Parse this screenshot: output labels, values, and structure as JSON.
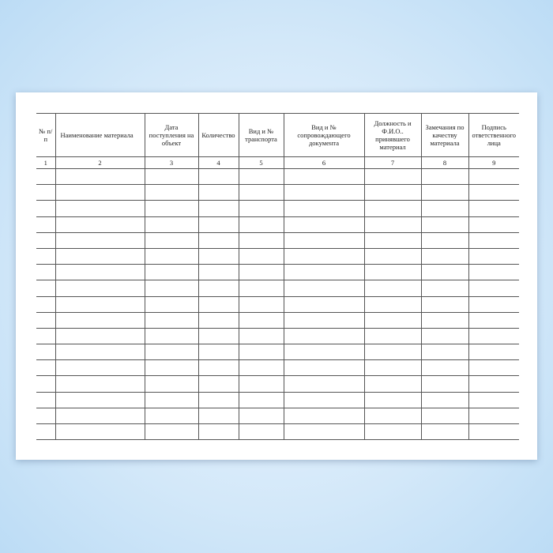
{
  "form": {
    "headers": [
      "№ п/п",
      "Наименование материала",
      "Дата поступления на объект",
      "Количество",
      "Вид и № транспорта",
      "Вид и № сопровождающего документа",
      "Должность и Ф.И.О.. принявшего материал",
      "Замечания по качеству материала",
      "Подпись ответственного лица"
    ],
    "column_numbers": [
      "1",
      "2",
      "3",
      "4",
      "5",
      "6",
      "7",
      "8",
      "9"
    ],
    "empty_rows": 17
  }
}
